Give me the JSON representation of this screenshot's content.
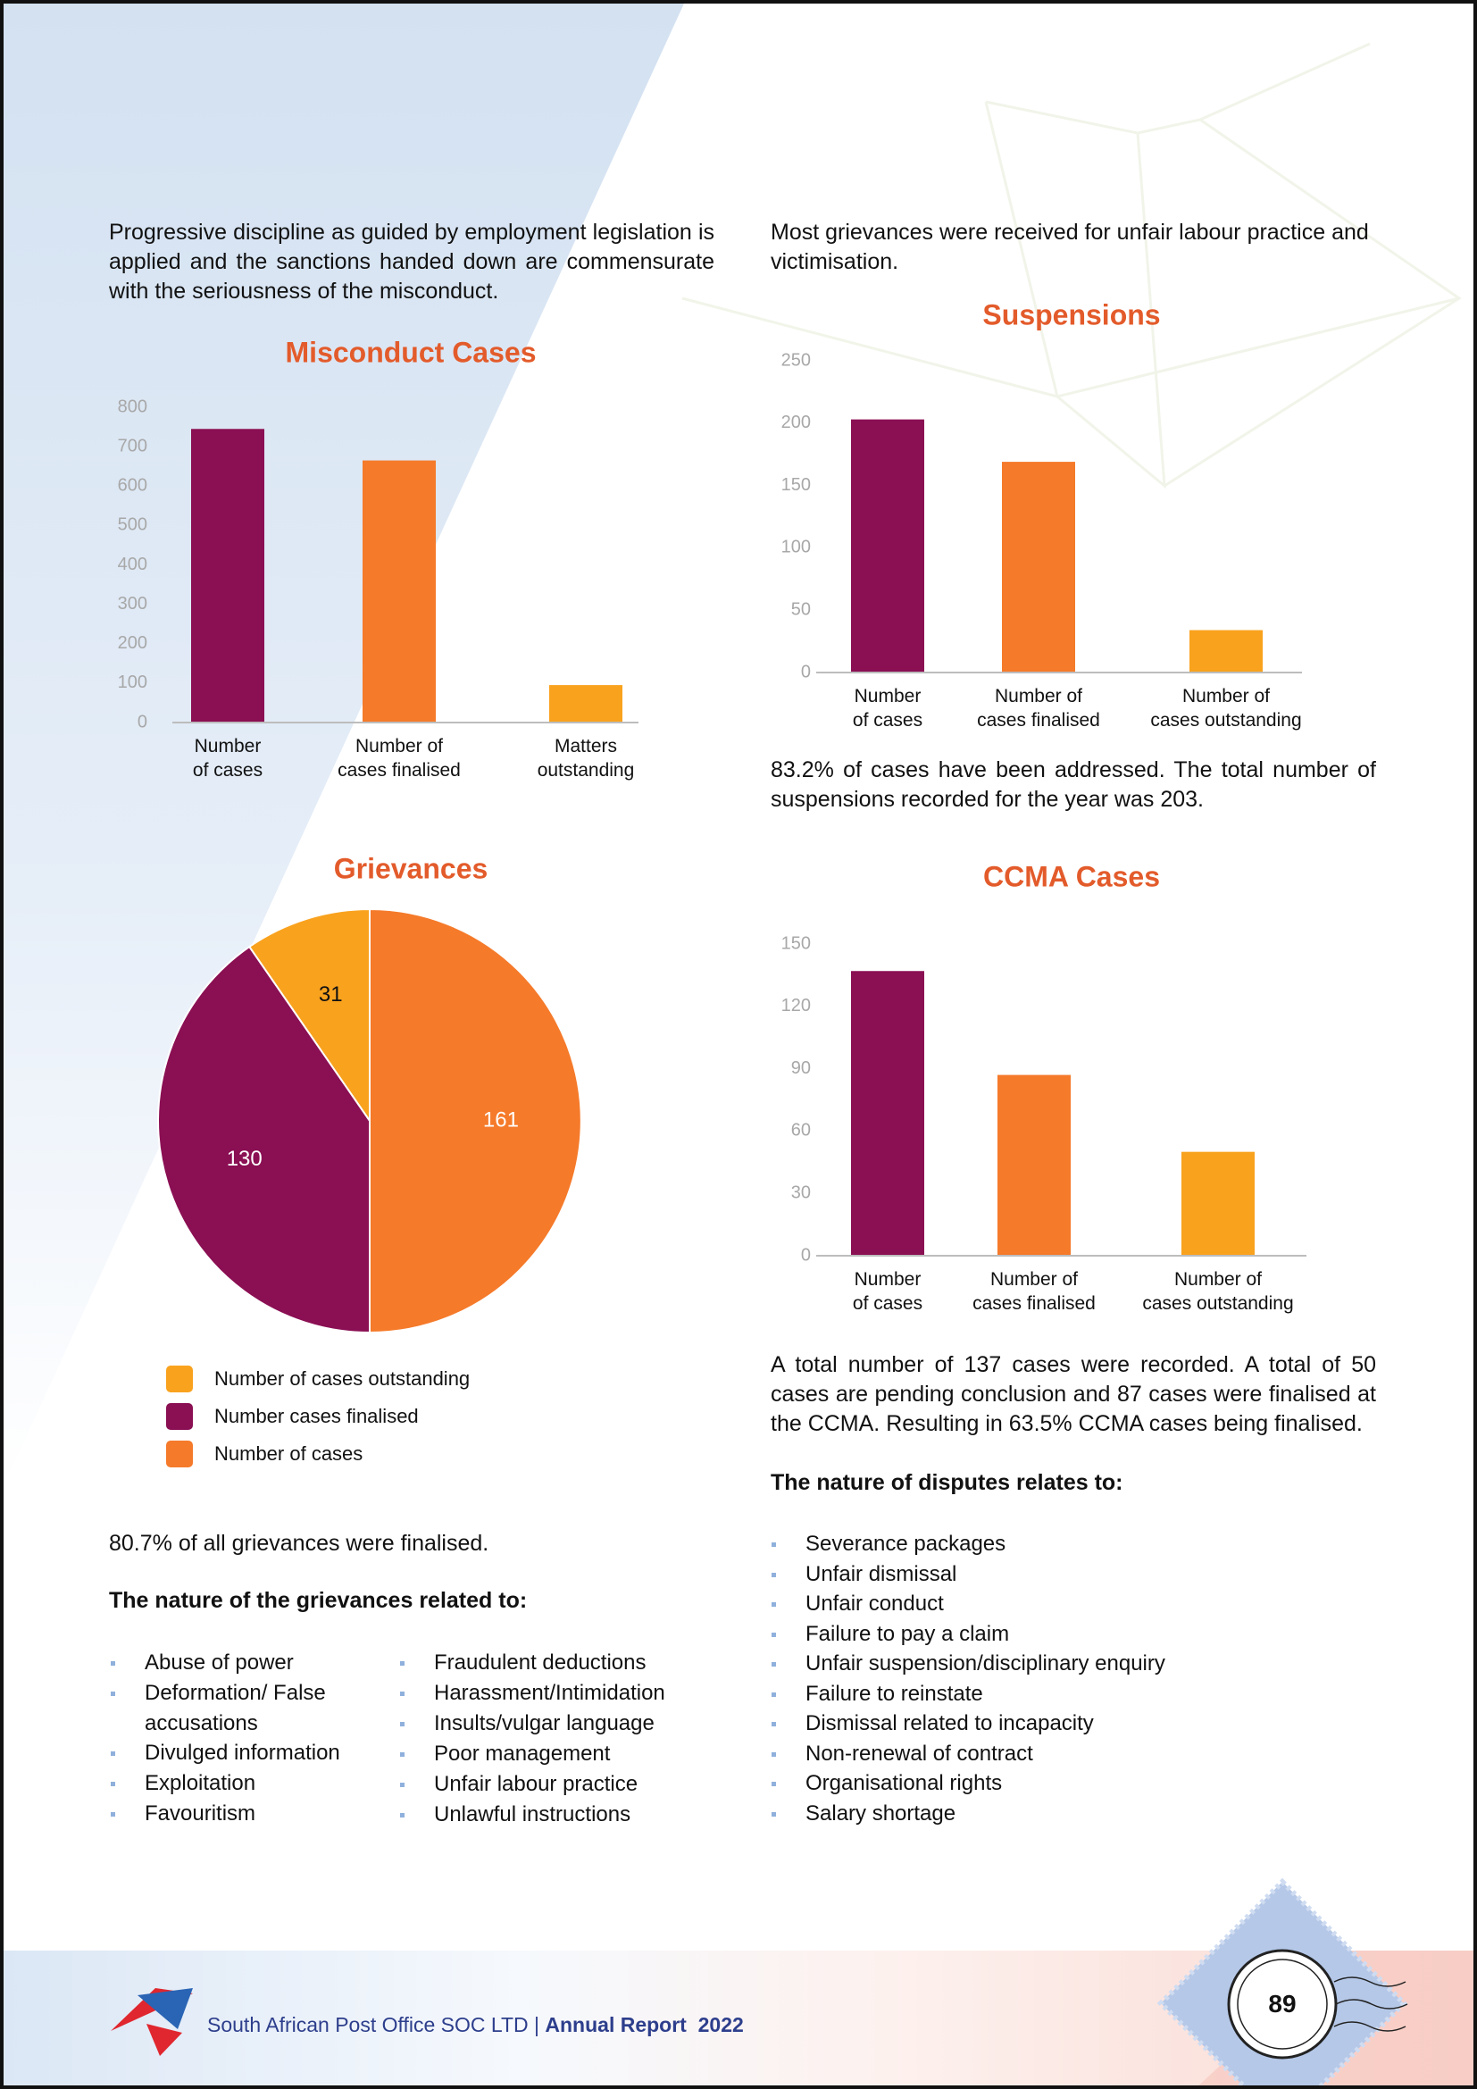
{
  "intro_left": "Progressive discipline as guided by employment legislation is applied and the sanctions handed down are commensurate with the seriousness of the misconduct.",
  "intro_right": "Most grievances were received for unfair labour practice and victimisation.",
  "suspensions_note": "83.2% of cases have been addressed. The total number of suspensions recorded for the year was 203.",
  "ccma_note": "A total number of 137 cases were recorded. A total of 50 cases are pending conclusion and 87 cases were finalised at the CCMA. Resulting in 63.5% CCMA cases being finalised.",
  "disputes_heading": "The nature of disputes relates to:",
  "disputes_list": [
    "Severance packages",
    "Unfair dismissal",
    "Unfair conduct",
    "Failure to pay a claim",
    "Unfair suspension/disciplinary enquiry",
    "Failure to reinstate",
    "Dismissal related to incapacity",
    "Non-renewal of contract",
    "Organisational rights",
    "Salary shortage"
  ],
  "grievances_note": "80.7% of all grievances were finalised.",
  "grievances_heading": "The nature of the grievances related to:",
  "grievances_list": [
    [
      "Abuse of power",
      "Deformation/ False accusations",
      "Divulged information",
      "Exploitation",
      "Favouritism"
    ],
    [
      "Fraudulent deductions",
      "Harassment/Intimidation",
      "Insults/vulgar language",
      "Poor management",
      "Unfair labour practice",
      "Unlawful instructions"
    ]
  ],
  "chart_data": [
    {
      "type": "bar",
      "title": "Misconduct Cases",
      "categories": [
        "Number\nof cases",
        "Number of\ncases finalised",
        "Matters\noutstanding"
      ],
      "values": [
        745,
        665,
        95
      ],
      "colors": [
        "#8a0f53",
        "#f57a2a",
        "#f9a21e"
      ],
      "ylim": [
        0,
        800
      ],
      "yticks": [
        0,
        100,
        200,
        300,
        400,
        500,
        600,
        700,
        800
      ]
    },
    {
      "type": "bar",
      "title": "Suspensions",
      "categories": [
        "Number\nof cases",
        "Number of\ncases finalised",
        "Number of\ncases outstanding"
      ],
      "values": [
        203,
        169,
        34
      ],
      "colors": [
        "#8a0f53",
        "#f57a2a",
        "#f9a21e"
      ],
      "ylim": [
        0,
        250
      ],
      "yticks": [
        0,
        50,
        100,
        150,
        200,
        250
      ]
    },
    {
      "type": "pie",
      "title": "Grievances",
      "categories": [
        "Number of cases outstanding",
        "Number cases finalised",
        "Number of cases"
      ],
      "values": [
        31,
        130,
        161
      ],
      "colors": [
        "#f9a21e",
        "#8a0f53",
        "#f57a2a"
      ]
    },
    {
      "type": "bar",
      "title": "CCMA Cases",
      "categories": [
        "Number\nof cases",
        "Number of\ncases finalised",
        "Number of\ncases outstanding"
      ],
      "values": [
        137,
        87,
        50
      ],
      "colors": [
        "#8a0f53",
        "#f57a2a",
        "#f9a21e"
      ],
      "ylim": [
        0,
        150
      ],
      "yticks": [
        0,
        30,
        60,
        90,
        120,
        150
      ]
    }
  ],
  "footer": {
    "company": "South African Post Office SOC LTD |",
    "report": "Annual Report  2022",
    "page_number": "89"
  }
}
